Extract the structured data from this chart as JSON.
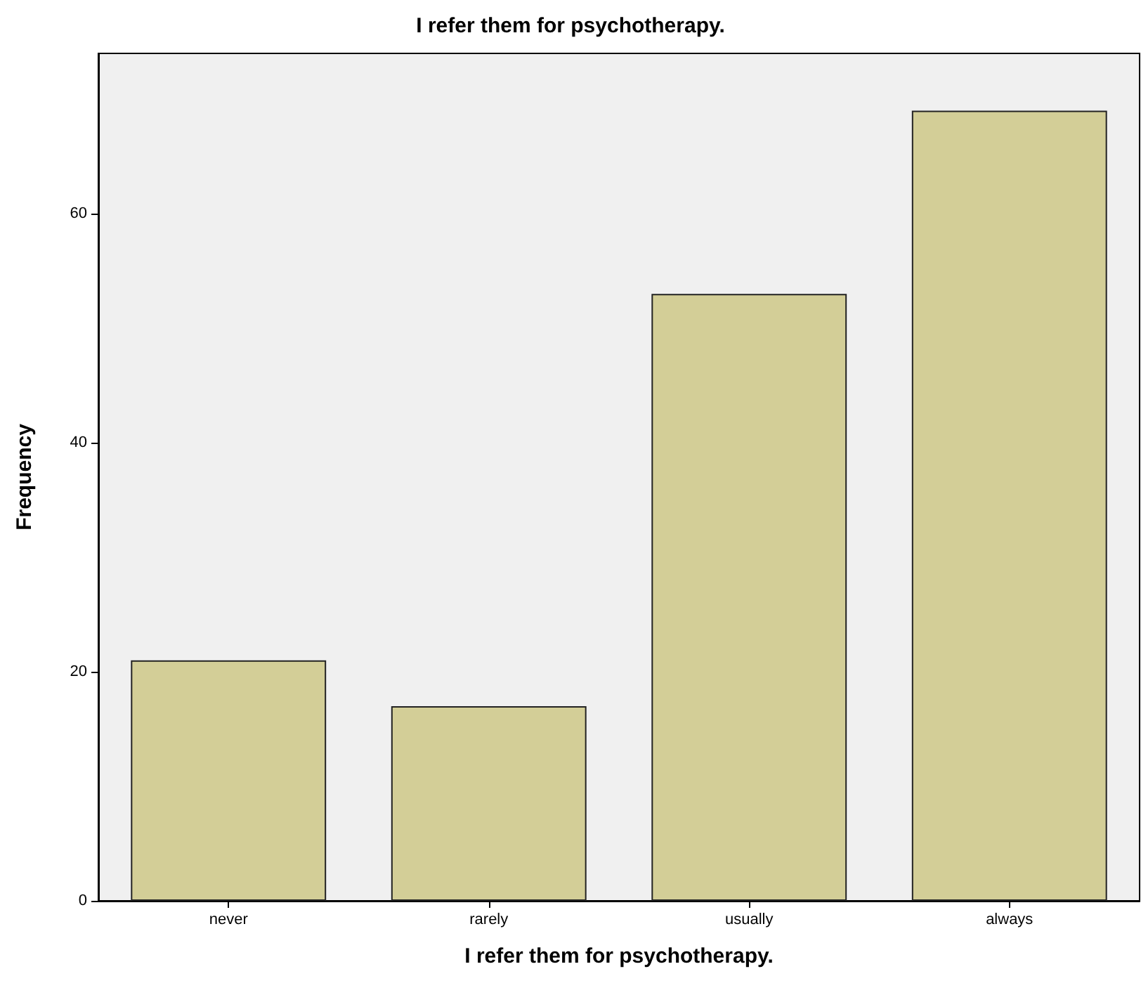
{
  "chart_data": {
    "type": "bar",
    "title": "I refer them for psychotherapy.",
    "xlabel": "I refer them for psychotherapy.",
    "ylabel": "Frequency",
    "categories": [
      "never",
      "rarely",
      "usually",
      "always"
    ],
    "values": [
      21,
      17,
      53,
      69
    ],
    "color": "#d3ce97",
    "ylim": [
      0,
      74
    ],
    "yticks": [
      0,
      20,
      40,
      60
    ],
    "grid": false
  }
}
